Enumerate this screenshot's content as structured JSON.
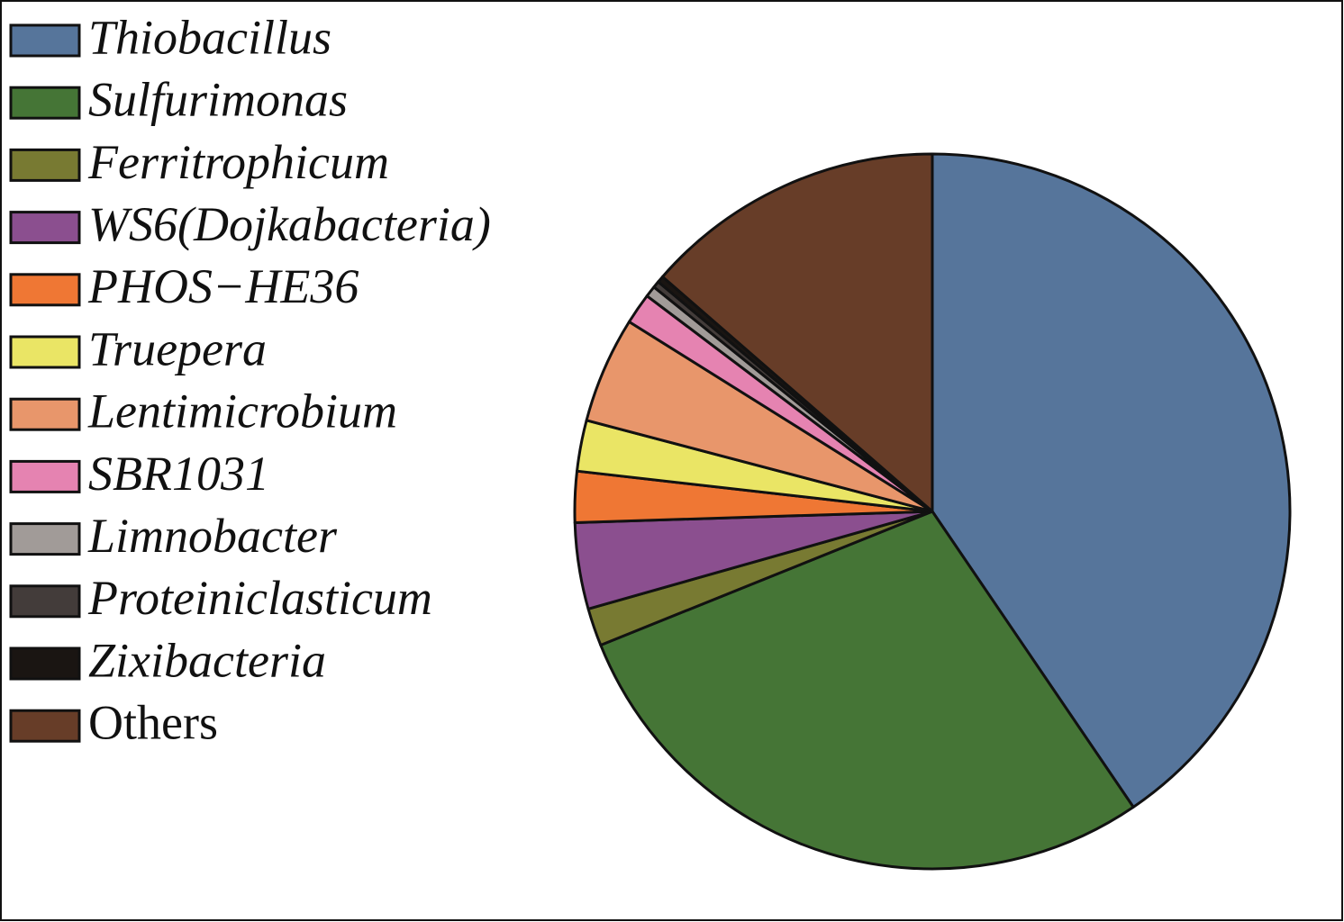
{
  "chart_data": {
    "type": "pie",
    "start_angle": 0,
    "direction": "clockwise",
    "categories": [
      "Thiobacillus",
      "Sulfurimonas",
      "Ferritrophicum",
      "WS6(Dojkabacteria)",
      "PHOS−HE36",
      "Truepera",
      "Lentimicrobium",
      "SBR1031",
      "Limnobacter",
      "Proteiniclasticum",
      "Zixibacteria",
      "Others"
    ],
    "values": [
      40.5,
      28.4,
      1.7,
      3.9,
      2.3,
      2.3,
      4.8,
      1.4,
      0.5,
      0.3,
      0.3,
      13.6
    ],
    "colors": [
      "#56759b",
      "#457536",
      "#787a32",
      "#8b4f8f",
      "#ef7734",
      "#eae565",
      "#e8966b",
      "#e583b1",
      "#a19b98",
      "#433c3a",
      "#1a1512",
      "#673d28"
    ],
    "legend": "left"
  }
}
